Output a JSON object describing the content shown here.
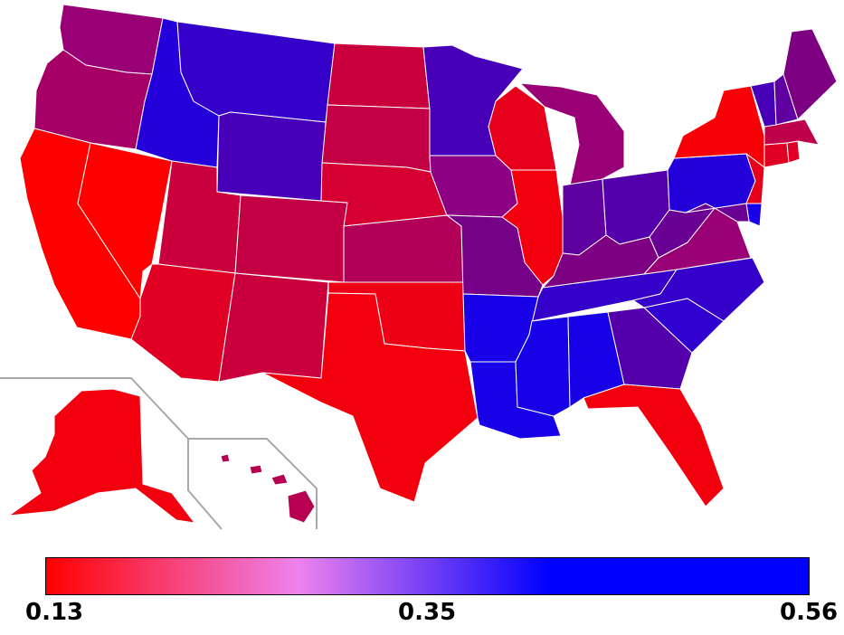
{
  "legend": {
    "min_label": "0.13",
    "mid_label": "0.35",
    "max_label": "0.56",
    "min_value": 0.13,
    "mid_value": 0.35,
    "max_value": 0.56,
    "colors": [
      "#ff0000",
      "#ee82ee",
      "#0000ff"
    ]
  },
  "states": {
    "WA": 0.3,
    "OR": 0.28,
    "CA": 0.13,
    "NV": 0.13,
    "ID": 0.5,
    "MT": 0.47,
    "WY": 0.44,
    "UT": 0.22,
    "CO": 0.23,
    "AZ": 0.18,
    "NM": 0.22,
    "ND": 0.22,
    "SD": 0.23,
    "NE": 0.2,
    "KS": 0.26,
    "OK": 0.16,
    "TX": 0.15,
    "MN": 0.44,
    "IA": 0.32,
    "MO": 0.36,
    "AR": 0.52,
    "LA": 0.52,
    "WI": 0.17,
    "IL": 0.15,
    "MI": 0.3,
    "IN": 0.4,
    "OH": 0.42,
    "KY": 0.35,
    "TN": 0.47,
    "MS": 0.52,
    "AL": 0.52,
    "GA": 0.42,
    "FL": 0.15,
    "SC": 0.48,
    "NC": 0.47,
    "VA": 0.3,
    "WV": 0.38,
    "PA": 0.5,
    "NY": 0.14,
    "NJ": 0.17,
    "DE": 0.52,
    "MD": 0.38,
    "CT": 0.18,
    "RI": 0.18,
    "MA": 0.24,
    "VT": 0.44,
    "NH": 0.4,
    "ME": 0.35,
    "AK": 0.15,
    "HI": 0.25
  }
}
